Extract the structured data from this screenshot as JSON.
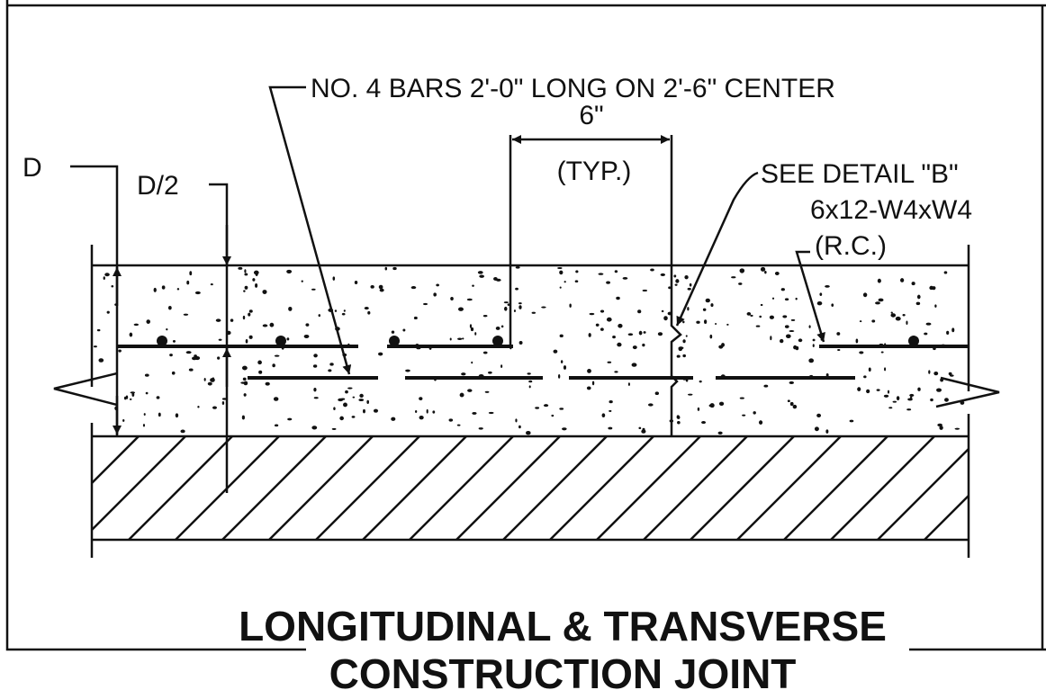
{
  "labels": {
    "bars": "NO. 4 BARS 2'-0\" LONG ON 2'-6\" CENTER",
    "spacing": "6\"",
    "typ": "(TYP.)",
    "depth": "D",
    "half_depth": "D/2",
    "detail": "SEE DETAIL \"B\"",
    "mesh": "6x12-W4xW4",
    "mesh_note": "(R.C.)"
  },
  "title": {
    "line1": "LONGITUDINAL & TRANSVERSE",
    "line2": "CONSTRUCTION JOINT"
  }
}
